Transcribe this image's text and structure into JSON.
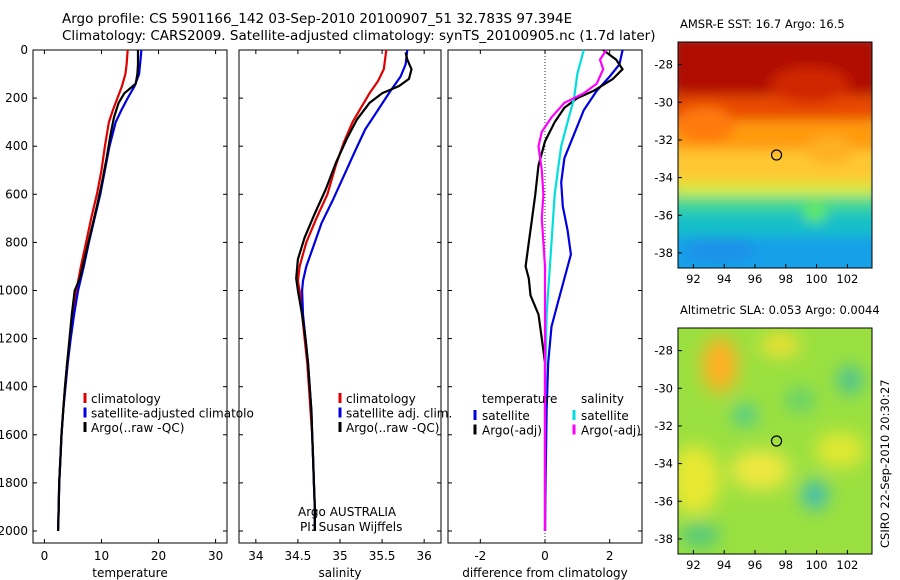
{
  "header": {
    "line1": "Argo profile: CS 5901166_142 03-Sep-2010 20100907_51 32.783S 97.394E",
    "line2": "Climatology: CARS2009. Satellite-adjusted climatology: synTS_20100905.nc (1.7d later)"
  },
  "credit": "CSIRO 22-Sep-2010 20:30:27",
  "chart_data": [
    {
      "type": "line",
      "xlabel": "temperature",
      "ylabel": "",
      "xlim": [
        -2,
        32
      ],
      "ylim": [
        2050,
        0
      ],
      "xticks": [
        0,
        10,
        20,
        30
      ],
      "yticks": [
        0,
        200,
        400,
        600,
        800,
        1000,
        1200,
        1400,
        1600,
        1800,
        2000
      ],
      "legend": [
        "climatology",
        "satellite-adjusted climatolo",
        "Argo(..raw -QC)"
      ],
      "series": [
        {
          "name": "climatology",
          "color": "#e00000",
          "points": [
            [
              14.6,
              0
            ],
            [
              14.4,
              60
            ],
            [
              14.2,
              100
            ],
            [
              13.6,
              150
            ],
            [
              12.8,
              200
            ],
            [
              12.0,
              250
            ],
            [
              11.3,
              300
            ],
            [
              10.6,
              400
            ],
            [
              10.0,
              500
            ],
            [
              9.2,
              600
            ],
            [
              8.2,
              700
            ],
            [
              7.3,
              800
            ],
            [
              6.4,
              900
            ],
            [
              5.6,
              1000
            ],
            [
              5.0,
              1100
            ],
            [
              4.5,
              1200
            ],
            [
              4.0,
              1300
            ],
            [
              3.6,
              1400
            ],
            [
              3.3,
              1500
            ],
            [
              3.0,
              1600
            ],
            [
              2.8,
              1700
            ],
            [
              2.6,
              1800
            ],
            [
              2.5,
              1900
            ],
            [
              2.4,
              2000
            ]
          ]
        },
        {
          "name": "satellite-adjusted climatolo",
          "color": "#0000e0",
          "points": [
            [
              17.0,
              0
            ],
            [
              16.8,
              50
            ],
            [
              16.6,
              100
            ],
            [
              15.8,
              150
            ],
            [
              14.6,
              200
            ],
            [
              13.5,
              250
            ],
            [
              12.5,
              300
            ],
            [
              11.4,
              400
            ],
            [
              10.6,
              500
            ],
            [
              9.8,
              600
            ],
            [
              8.8,
              700
            ],
            [
              7.8,
              800
            ],
            [
              6.9,
              900
            ],
            [
              5.9,
              1000
            ],
            [
              5.2,
              1100
            ],
            [
              4.6,
              1200
            ],
            [
              4.1,
              1300
            ],
            [
              3.7,
              1400
            ],
            [
              3.3,
              1500
            ],
            [
              3.0,
              1600
            ],
            [
              2.8,
              1700
            ],
            [
              2.6,
              1800
            ],
            [
              2.5,
              1900
            ],
            [
              2.4,
              2000
            ]
          ]
        },
        {
          "name": "Argo(..raw -QC)",
          "color": "#000000",
          "points": [
            [
              16.4,
              0
            ],
            [
              16.4,
              60
            ],
            [
              16.3,
              100
            ],
            [
              16.0,
              140
            ],
            [
              15.0,
              160
            ],
            [
              14.0,
              180
            ],
            [
              13.0,
              220
            ],
            [
              12.2,
              280
            ],
            [
              11.6,
              350
            ],
            [
              10.9,
              450
            ],
            [
              10.1,
              550
            ],
            [
              9.2,
              650
            ],
            [
              8.2,
              750
            ],
            [
              7.2,
              850
            ],
            [
              6.2,
              950
            ],
            [
              5.3,
              1000
            ],
            [
              4.8,
              1100
            ],
            [
              4.4,
              1200
            ],
            [
              4.0,
              1300
            ],
            [
              3.6,
              1400
            ],
            [
              3.3,
              1500
            ],
            [
              3.0,
              1600
            ],
            [
              2.8,
              1700
            ],
            [
              2.6,
              1800
            ],
            [
              2.5,
              1900
            ],
            [
              2.4,
              2000
            ]
          ]
        }
      ]
    },
    {
      "type": "line",
      "xlabel": "salinity",
      "ylabel": "",
      "xlim": [
        33.8,
        36.2
      ],
      "ylim": [
        2050,
        0
      ],
      "xticks": [
        34,
        34.5,
        35,
        35.5,
        36
      ],
      "legend": [
        "climatology",
        "satellite adj. clim.",
        "Argo(..raw -QC)"
      ],
      "annotation": [
        "Argo AUSTRALIA",
        "PI: Susan Wijffels"
      ],
      "series": [
        {
          "name": "climatology",
          "color": "#e00000",
          "points": [
            [
              35.55,
              0
            ],
            [
              35.52,
              80
            ],
            [
              35.45,
              130
            ],
            [
              35.35,
              180
            ],
            [
              35.25,
              240
            ],
            [
              35.15,
              300
            ],
            [
              35.05,
              380
            ],
            [
              34.95,
              480
            ],
            [
              34.85,
              600
            ],
            [
              34.72,
              700
            ],
            [
              34.6,
              800
            ],
            [
              34.52,
              900
            ],
            [
              34.5,
              960
            ],
            [
              34.52,
              1000
            ],
            [
              34.55,
              1100
            ],
            [
              34.58,
              1200
            ],
            [
              34.61,
              1300
            ],
            [
              34.63,
              1400
            ],
            [
              34.65,
              1500
            ],
            [
              34.67,
              1600
            ],
            [
              34.68,
              1700
            ],
            [
              34.69,
              1800
            ],
            [
              34.7,
              1900
            ],
            [
              34.7,
              2000
            ]
          ]
        },
        {
          "name": "satellite adj. clim.",
          "color": "#0000e0",
          "points": [
            [
              35.8,
              0
            ],
            [
              35.78,
              60
            ],
            [
              35.72,
              110
            ],
            [
              35.6,
              170
            ],
            [
              35.45,
              250
            ],
            [
              35.3,
              330
            ],
            [
              35.18,
              420
            ],
            [
              35.05,
              520
            ],
            [
              34.92,
              620
            ],
            [
              34.78,
              720
            ],
            [
              34.68,
              820
            ],
            [
              34.6,
              900
            ],
            [
              34.56,
              960
            ],
            [
              34.55,
              1000
            ],
            [
              34.56,
              1100
            ],
            [
              34.59,
              1200
            ],
            [
              34.62,
              1300
            ],
            [
              34.64,
              1400
            ],
            [
              34.66,
              1500
            ],
            [
              34.67,
              1600
            ],
            [
              34.68,
              1700
            ],
            [
              34.69,
              1800
            ],
            [
              34.7,
              1900
            ],
            [
              34.7,
              2000
            ]
          ]
        },
        {
          "name": "Argo(..raw -QC)",
          "color": "#000000",
          "points": [
            [
              35.78,
              10
            ],
            [
              35.8,
              40
            ],
            [
              35.85,
              80
            ],
            [
              35.82,
              120
            ],
            [
              35.7,
              150
            ],
            [
              35.5,
              180
            ],
            [
              35.35,
              220
            ],
            [
              35.2,
              290
            ],
            [
              35.08,
              370
            ],
            [
              34.95,
              470
            ],
            [
              34.83,
              580
            ],
            [
              34.7,
              680
            ],
            [
              34.58,
              780
            ],
            [
              34.5,
              870
            ],
            [
              34.48,
              950
            ],
            [
              34.5,
              1000
            ],
            [
              34.55,
              1100
            ],
            [
              34.59,
              1200
            ],
            [
              34.62,
              1300
            ],
            [
              34.64,
              1400
            ],
            [
              34.66,
              1500
            ],
            [
              34.67,
              1600
            ],
            [
              34.68,
              1700
            ],
            [
              34.69,
              1800
            ],
            [
              34.7,
              1900
            ],
            [
              34.7,
              2000
            ]
          ]
        }
      ]
    },
    {
      "type": "line",
      "xlabel": "difference from climatology",
      "ylabel": "",
      "xlim": [
        -3,
        3
      ],
      "ylim": [
        2050,
        0
      ],
      "xticks": [
        -2,
        0,
        2
      ],
      "legend_groups": [
        {
          "title": "temperature",
          "items": [
            "satellite",
            "Argo(-adj)"
          ]
        },
        {
          "title": "salinity",
          "items": [
            "satellite",
            "Argo(-adj)"
          ]
        }
      ],
      "series": [
        {
          "name": "temperature satellite",
          "color": "#0000e0",
          "points": [
            [
              2.4,
              0
            ],
            [
              2.3,
              60
            ],
            [
              2.0,
              110
            ],
            [
              1.6,
              170
            ],
            [
              1.2,
              250
            ],
            [
              0.9,
              350
            ],
            [
              0.6,
              450
            ],
            [
              0.5,
              550
            ],
            [
              0.55,
              650
            ],
            [
              0.7,
              750
            ],
            [
              0.8,
              850
            ],
            [
              0.6,
              950
            ],
            [
              0.4,
              1050
            ],
            [
              0.2,
              1150
            ],
            [
              0.1,
              1300
            ],
            [
              0.05,
              1500
            ],
            [
              0.02,
              1800
            ],
            [
              0.0,
              2000
            ]
          ]
        },
        {
          "name": "temperature Argo(-adj)",
          "color": "#000000",
          "points": [
            [
              1.8,
              0
            ],
            [
              2.2,
              40
            ],
            [
              2.4,
              80
            ],
            [
              2.1,
              120
            ],
            [
              1.5,
              170
            ],
            [
              1.0,
              200
            ],
            [
              0.6,
              240
            ],
            [
              0.3,
              300
            ],
            [
              0.0,
              380
            ],
            [
              -0.2,
              480
            ],
            [
              -0.3,
              600
            ],
            [
              -0.4,
              700
            ],
            [
              -0.5,
              800
            ],
            [
              -0.6,
              900
            ],
            [
              -0.5,
              950
            ],
            [
              -0.45,
              1020
            ],
            [
              -0.2,
              1100
            ],
            [
              -0.1,
              1200
            ],
            [
              0.0,
              1300
            ],
            [
              0.0,
              1600
            ],
            [
              0.0,
              1800
            ],
            [
              0.0,
              2000
            ]
          ]
        },
        {
          "name": "salinity satellite",
          "color": "#00dede",
          "points": [
            [
              1.2,
              0
            ],
            [
              1.0,
              100
            ],
            [
              0.9,
              200
            ],
            [
              0.7,
              300
            ],
            [
              0.5,
              400
            ],
            [
              0.4,
              500
            ],
            [
              0.3,
              600
            ],
            [
              0.25,
              700
            ],
            [
              0.2,
              800
            ],
            [
              0.15,
              900
            ],
            [
              0.1,
              1000
            ],
            [
              0.05,
              1100
            ],
            [
              0.02,
              1300
            ],
            [
              0.0,
              1500
            ],
            [
              0.0,
              1700
            ],
            [
              0.0,
              2000
            ]
          ]
        },
        {
          "name": "salinity Argo(-adj)",
          "color": "#ff00ff",
          "points": [
            [
              1.9,
              0
            ],
            [
              1.7,
              40
            ],
            [
              1.8,
              80
            ],
            [
              1.6,
              140
            ],
            [
              1.2,
              180
            ],
            [
              0.6,
              220
            ],
            [
              0.2,
              280
            ],
            [
              -0.1,
              340
            ],
            [
              -0.2,
              400
            ],
            [
              -0.1,
              500
            ],
            [
              -0.05,
              600
            ],
            [
              -0.1,
              700
            ],
            [
              -0.05,
              800
            ],
            [
              0.0,
              900
            ],
            [
              0.0,
              1100
            ],
            [
              0.0,
              1300
            ],
            [
              0.0,
              1600
            ],
            [
              0.0,
              2000
            ]
          ]
        }
      ]
    }
  ],
  "maps": [
    {
      "title": "AMSR-E SST: 16.7 Argo: 16.5",
      "xticks": [
        "92",
        "94",
        "96",
        "98",
        "100",
        "102"
      ],
      "yticks": [
        "-28",
        "-30",
        "-32",
        "-34",
        "-36",
        "-38"
      ],
      "marker": {
        "lon": 97.4,
        "lat": -32.8
      }
    },
    {
      "title": "Altimetric SLA: 0.053 Argo: 0.0044",
      "xticks": [
        "92",
        "94",
        "96",
        "98",
        "100",
        "102"
      ],
      "yticks": [
        "-28",
        "-30",
        "-32",
        "-34",
        "-36",
        "-38"
      ],
      "marker": {
        "lon": 97.4,
        "lat": -32.8
      }
    }
  ]
}
